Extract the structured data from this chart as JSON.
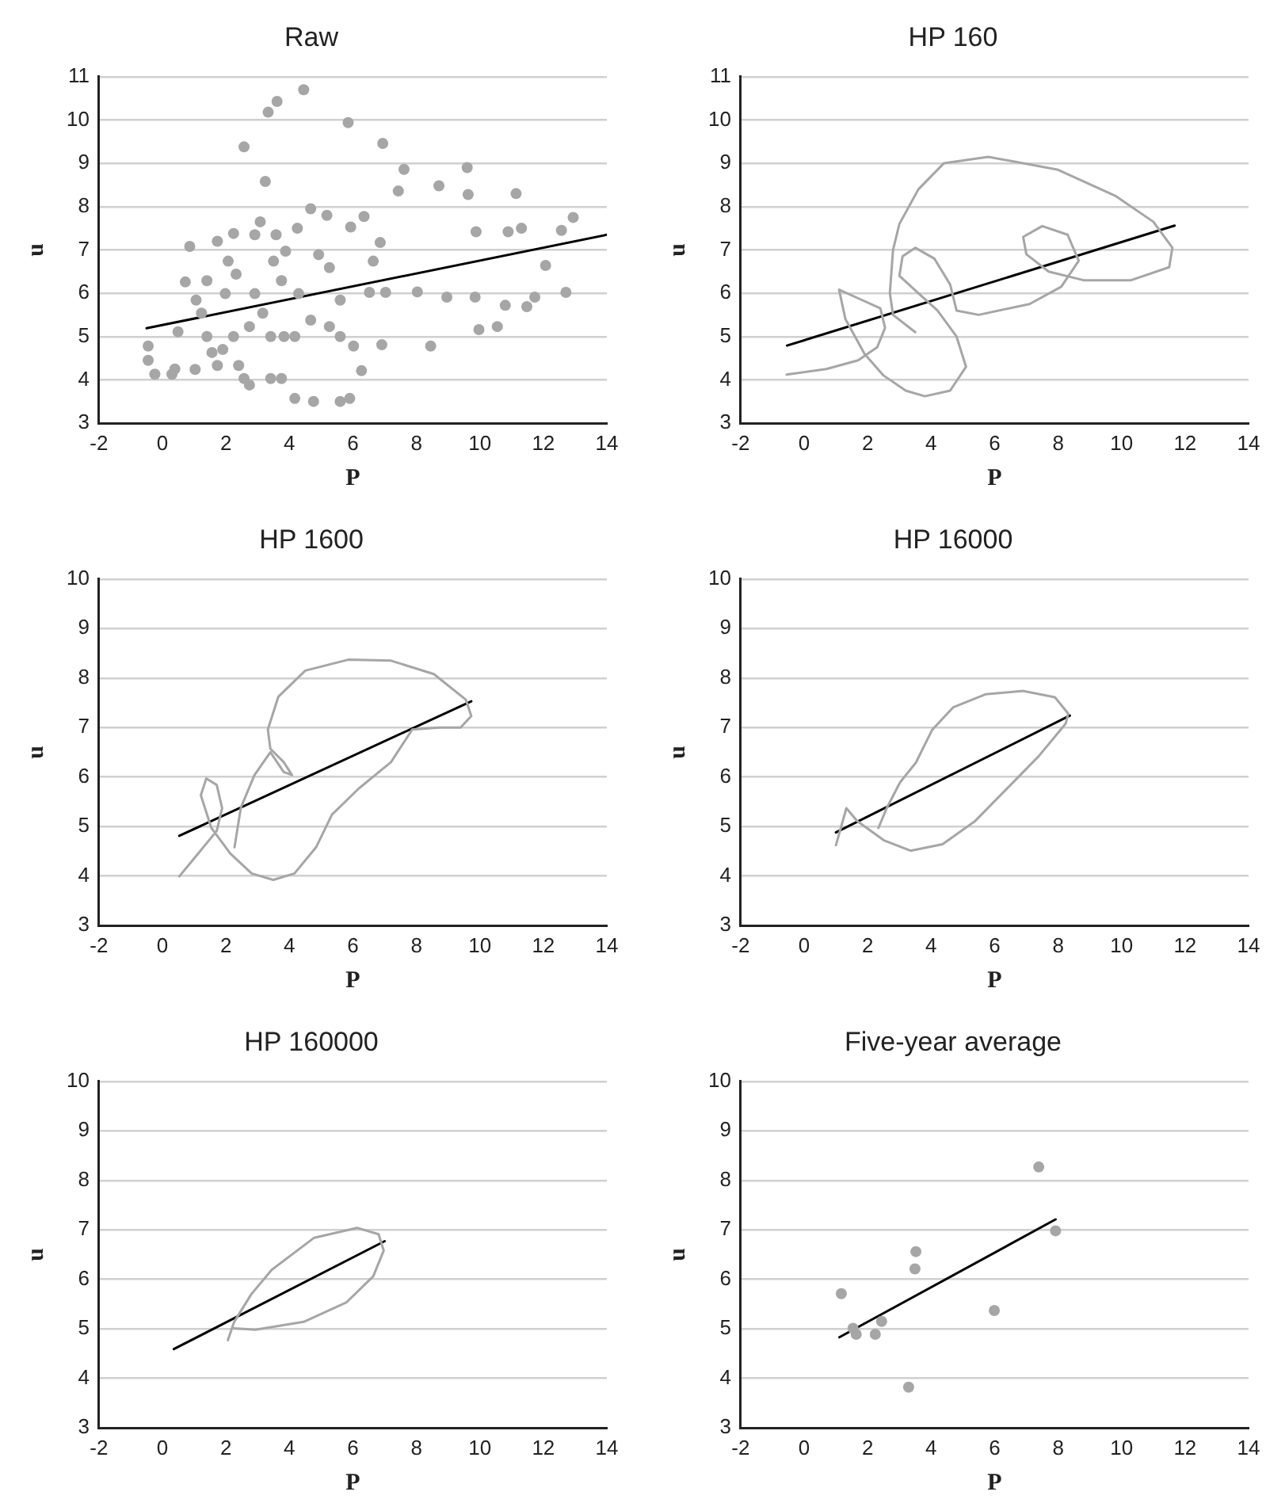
{
  "chart_data": [
    {
      "type": "scatter",
      "title": "Raw",
      "xlabel": "P",
      "ylabel": "u",
      "xlim": [
        -2,
        14
      ],
      "xticks": [
        -2,
        0,
        2,
        4,
        6,
        8,
        10,
        12,
        14
      ],
      "ylim": [
        3,
        11
      ],
      "yticks": [
        3,
        4,
        5,
        6,
        7,
        8,
        9,
        10,
        11
      ],
      "grid": "y",
      "series": [
        {
          "marker": "circle",
          "color": "#a6a6a6",
          "x": [
            -0.45,
            -0.45,
            -0.24,
            0.3,
            0.39,
            0.49,
            0.72,
            0.86,
            1.03,
            1.4,
            1.06,
            1.23,
            1.4,
            1.56,
            1.73,
            1.73,
            1.98,
            1.9,
            2.24,
            2.07,
            2.24,
            2.4,
            2.57,
            2.57,
            2.32,
            2.74,
            2.91,
            2.91,
            2.74,
            3.08,
            3.24,
            3.16,
            3.33,
            3.61,
            3.41,
            3.41,
            3.5,
            3.75,
            3.75,
            3.58,
            3.83,
            3.88,
            4.17,
            4.17,
            4.25,
            4.29,
            4.45,
            4.67,
            4.67,
            4.76,
            4.92,
            5.18,
            5.26,
            5.26,
            5.6,
            5.6,
            5.6,
            5.85,
            5.93,
            6.02,
            5.9,
            6.27,
            6.35,
            6.52,
            6.64,
            6.86,
            6.94,
            7.03,
            6.91,
            7.43,
            7.61,
            8.03,
            8.45,
            8.71,
            8.96,
            9.6,
            9.63,
            9.88,
            9.85,
            9.97,
            10.55,
            10.8,
            10.89,
            11.14,
            11.31,
            11.48,
            11.73,
            12.07,
            12.57,
            12.71,
            12.94
          ],
          "values": [
            4.78,
            4.45,
            4.13,
            4.13,
            4.25,
            5.11,
            6.26,
            7.08,
            4.24,
            6.29,
            5.84,
            5.54,
            5.0,
            4.63,
            7.2,
            4.33,
            5.99,
            4.7,
            5.0,
            6.74,
            7.38,
            4.33,
            9.38,
            4.03,
            6.44,
            5.23,
            7.35,
            5.99,
            3.88,
            7.65,
            8.58,
            5.54,
            10.18,
            10.43,
            5.0,
            4.03,
            6.74,
            6.29,
            4.03,
            7.35,
            5.0,
            6.97,
            5.0,
            3.57,
            7.5,
            5.99,
            10.7,
            7.95,
            5.38,
            3.5,
            6.89,
            7.8,
            6.59,
            5.23,
            3.5,
            5.0,
            5.84,
            9.94,
            7.53,
            4.78,
            3.57,
            4.21,
            7.77,
            6.02,
            6.74,
            7.17,
            9.46,
            6.02,
            4.81,
            8.36,
            8.86,
            6.03,
            4.78,
            8.48,
            5.91,
            8.9,
            8.28,
            7.42,
            5.91,
            5.16,
            5.23,
            5.72,
            7.42,
            8.3,
            7.5,
            5.69,
            5.91,
            6.64,
            7.45,
            6.02,
            7.75
          ]
        },
        {
          "type": "line",
          "color": "#000000",
          "x": [
            -0.5,
            14
          ],
          "values": [
            5.19,
            7.35
          ]
        }
      ]
    },
    {
      "type": "line",
      "title": "HP 160",
      "xlabel": "P",
      "ylabel": "u",
      "xlim": [
        -2,
        14
      ],
      "xticks": [
        -2,
        0,
        2,
        4,
        6,
        8,
        10,
        12,
        14
      ],
      "ylim": [
        3,
        11
      ],
      "yticks": [
        3,
        4,
        5,
        6,
        7,
        8,
        9,
        10,
        11
      ],
      "grid": "y",
      "series": [
        {
          "color": "#a6a6a6",
          "x": [
            -0.55,
            0.7,
            1.7,
            2.3,
            2.55,
            2.4,
            1.8,
            1.1,
            1.3,
            1.9,
            2.5,
            3.2,
            3.8,
            4.6,
            5.1,
            4.8,
            4.2,
            3.6,
            3.0,
            3.1,
            3.5,
            4.1,
            4.6,
            4.8,
            5.5,
            7.1,
            8.1,
            8.65,
            8.3,
            7.5,
            6.9,
            7.0,
            7.7,
            8.8,
            10.3,
            11.5,
            11.6,
            11.0,
            9.8,
            8.0,
            5.8,
            4.4,
            3.6,
            3.0,
            2.8,
            2.7,
            2.8,
            3.5
          ],
          "values": [
            4.12,
            4.25,
            4.45,
            4.75,
            5.2,
            5.65,
            5.85,
            6.08,
            5.4,
            4.6,
            4.1,
            3.75,
            3.62,
            3.75,
            4.3,
            5.0,
            5.6,
            6.0,
            6.4,
            6.85,
            7.05,
            6.8,
            6.2,
            5.6,
            5.5,
            5.75,
            6.15,
            6.75,
            7.35,
            7.55,
            7.3,
            6.9,
            6.5,
            6.3,
            6.3,
            6.6,
            7.05,
            7.65,
            8.25,
            8.85,
            9.15,
            9.0,
            8.4,
            7.6,
            7.0,
            6.0,
            5.5,
            5.1
          ]
        },
        {
          "color": "#000000",
          "x": [
            -0.54,
            11.67
          ],
          "values": [
            4.79,
            7.56
          ]
        }
      ]
    },
    {
      "type": "line",
      "title": "HP 1600",
      "xlabel": "P",
      "ylabel": "u",
      "xlim": [
        -2,
        14
      ],
      "xticks": [
        -2,
        0,
        2,
        4,
        6,
        8,
        10,
        12,
        14
      ],
      "ylim": [
        3,
        10
      ],
      "yticks": [
        3,
        4,
        5,
        6,
        7,
        8,
        9,
        10
      ],
      "grid": "y",
      "series": [
        {
          "color": "#a6a6a6",
          "x": [
            0.53,
            1.12,
            1.71,
            1.88,
            1.71,
            1.38,
            1.21,
            1.54,
            2.14,
            2.81,
            3.49,
            4.16,
            4.84,
            5.34,
            6.19,
            7.2,
            7.87,
            8.72,
            9.39,
            9.73,
            9.56,
            8.55,
            7.2,
            5.85,
            4.5,
            3.65,
            3.32,
            3.4,
            3.82,
            4.08,
            3.82,
            3.4,
            2.9,
            2.47,
            2.27
          ],
          "values": [
            3.99,
            4.45,
            4.91,
            5.37,
            5.84,
            5.97,
            5.63,
            4.97,
            4.45,
            4.05,
            3.92,
            4.05,
            4.58,
            5.24,
            5.77,
            6.3,
            6.96,
            7.0,
            7.0,
            7.23,
            7.56,
            8.08,
            8.35,
            8.37,
            8.15,
            7.62,
            6.96,
            6.57,
            6.3,
            6.04,
            6.1,
            6.5,
            6.04,
            5.38,
            4.58
          ]
        },
        {
          "color": "#000000",
          "x": [
            0.53,
            9.73
          ],
          "values": [
            4.81,
            7.53
          ]
        }
      ]
    },
    {
      "type": "line",
      "title": "HP 16000",
      "xlabel": "P",
      "ylabel": "u",
      "xlim": [
        -2,
        14
      ],
      "xticks": [
        -2,
        0,
        2,
        4,
        6,
        8,
        10,
        12,
        14
      ],
      "ylim": [
        3,
        10
      ],
      "yticks": [
        3,
        4,
        5,
        6,
        7,
        8,
        9,
        10
      ],
      "grid": "y",
      "series": [
        {
          "color": "#a6a6a6",
          "x": [
            1.0,
            1.33,
            1.67,
            2.51,
            3.35,
            4.36,
            5.37,
            6.38,
            7.39,
            8.24,
            8.32,
            7.9,
            6.89,
            5.71,
            4.7,
            4.03,
            3.52,
            3.02,
            2.6,
            2.34
          ],
          "values": [
            4.62,
            5.37,
            5.11,
            4.72,
            4.51,
            4.64,
            5.1,
            5.76,
            6.42,
            7.08,
            7.28,
            7.61,
            7.74,
            7.67,
            7.41,
            6.95,
            6.29,
            5.89,
            5.37,
            4.97
          ]
        },
        {
          "color": "#000000",
          "x": [
            1.0,
            8.37
          ],
          "values": [
            4.88,
            7.24
          ]
        }
      ]
    },
    {
      "type": "line",
      "title": "HP 160000",
      "xlabel": "P",
      "ylabel": "u",
      "xlim": [
        -2,
        14
      ],
      "xticks": [
        -2,
        0,
        2,
        4,
        6,
        8,
        10,
        12,
        14
      ],
      "ylim": [
        3,
        10
      ],
      "yticks": [
        3,
        4,
        5,
        6,
        7,
        8,
        9,
        10
      ],
      "grid": "y",
      "series": [
        {
          "color": "#a6a6a6",
          "x": [
            2.06,
            2.26,
            2.8,
            3.44,
            4.78,
            6.13,
            6.81,
            6.97,
            6.64,
            5.79,
            4.45,
            2.93,
            2.26
          ],
          "values": [
            4.77,
            5.14,
            5.7,
            6.19,
            6.84,
            7.04,
            6.91,
            6.58,
            6.06,
            5.53,
            5.14,
            4.98,
            5.01
          ]
        },
        {
          "color": "#000000",
          "x": [
            0.36,
            7.0
          ],
          "values": [
            4.59,
            6.77
          ]
        }
      ]
    },
    {
      "type": "scatter",
      "title": "Five-year average",
      "xlabel": "P",
      "ylabel": "u",
      "xlim": [
        -2,
        14
      ],
      "xticks": [
        -2,
        0,
        2,
        4,
        6,
        8,
        10,
        12,
        14
      ],
      "ylim": [
        3,
        10
      ],
      "yticks": [
        3,
        4,
        5,
        6,
        7,
        8,
        9,
        10
      ],
      "grid": "y",
      "series": [
        {
          "marker": "circle",
          "color": "#a6a6a6",
          "x": [
            1.17,
            1.54,
            1.64,
            2.24,
            2.44,
            3.29,
            3.49,
            3.52,
            5.99,
            7.39,
            7.92
          ],
          "values": [
            5.71,
            5.01,
            4.89,
            4.89,
            5.15,
            3.82,
            6.21,
            6.56,
            5.37,
            8.27,
            6.98
          ]
        },
        {
          "type": "line",
          "color": "#000000",
          "x": [
            1.11,
            7.92
          ],
          "values": [
            4.83,
            7.21
          ]
        }
      ]
    }
  ]
}
